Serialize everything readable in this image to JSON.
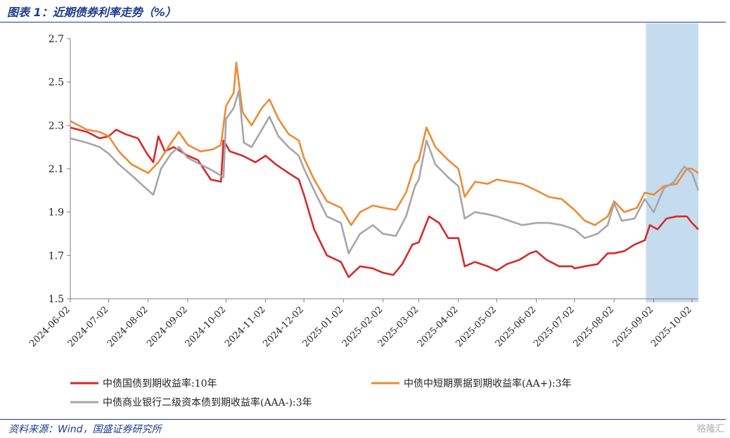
{
  "title": "图表 1：近期债券利率走势（%）",
  "source": "资料来源：Wind，国盛证券研究所",
  "watermark": "格隆汇",
  "chart_data": {
    "type": "line",
    "title": "",
    "xlabel": "",
    "ylabel": "",
    "ylim": [
      1.5,
      2.7
    ],
    "yticks": [
      "2.7",
      "2.5",
      "2.3",
      "2.1",
      "1.9",
      "1.7",
      "1.5"
    ],
    "xticks": [
      "2024-06-02",
      "2024-07-02",
      "2024-08-02",
      "2024-09-02",
      "2024-10-02",
      "2024-11-02",
      "2024-12-02",
      "2025-01-02",
      "2025-02-02",
      "2025-03-02",
      "2025-04-02",
      "2025-05-02",
      "2025-06-02",
      "2025-07-02",
      "2025-08-02",
      "2025-09-02",
      "2025-10-02"
    ],
    "grid": false,
    "legend_position": "bottom",
    "highlight": {
      "from": "2025-08-27",
      "to": "2025-10-02",
      "color": "#c5dcef"
    },
    "series": [
      {
        "name": "中债国债到期收益率:10年",
        "color": "#d62a2a",
        "points": [
          [
            "2024-06-02",
            2.29
          ],
          [
            "2024-06-15",
            2.27
          ],
          [
            "2024-06-25",
            2.24
          ],
          [
            "2024-07-02",
            2.25
          ],
          [
            "2024-07-08",
            2.28
          ],
          [
            "2024-07-15",
            2.26
          ],
          [
            "2024-07-25",
            2.24
          ],
          [
            "2024-08-01",
            2.17
          ],
          [
            "2024-08-06",
            2.13
          ],
          [
            "2024-08-10",
            2.25
          ],
          [
            "2024-08-15",
            2.18
          ],
          [
            "2024-08-22",
            2.2
          ],
          [
            "2024-09-02",
            2.16
          ],
          [
            "2024-09-10",
            2.14
          ],
          [
            "2024-09-20",
            2.05
          ],
          [
            "2024-09-28",
            2.04
          ],
          [
            "2024-09-30",
            2.23
          ],
          [
            "2024-10-05",
            2.18
          ],
          [
            "2024-10-15",
            2.16
          ],
          [
            "2024-10-25",
            2.13
          ],
          [
            "2024-11-02",
            2.16
          ],
          [
            "2024-11-10",
            2.12
          ],
          [
            "2024-11-20",
            2.08
          ],
          [
            "2024-11-28",
            2.05
          ],
          [
            "2024-12-02",
            1.98
          ],
          [
            "2024-12-10",
            1.82
          ],
          [
            "2024-12-20",
            1.7
          ],
          [
            "2024-12-31",
            1.67
          ],
          [
            "2025-01-06",
            1.6
          ],
          [
            "2025-01-15",
            1.65
          ],
          [
            "2025-01-25",
            1.64
          ],
          [
            "2025-02-02",
            1.62
          ],
          [
            "2025-02-10",
            1.61
          ],
          [
            "2025-02-17",
            1.66
          ],
          [
            "2025-02-25",
            1.75
          ],
          [
            "2025-03-02",
            1.76
          ],
          [
            "2025-03-10",
            1.88
          ],
          [
            "2025-03-18",
            1.85
          ],
          [
            "2025-03-25",
            1.78
          ],
          [
            "2025-04-02",
            1.78
          ],
          [
            "2025-04-07",
            1.65
          ],
          [
            "2025-04-15",
            1.67
          ],
          [
            "2025-04-25",
            1.65
          ],
          [
            "2025-05-02",
            1.63
          ],
          [
            "2025-05-10",
            1.66
          ],
          [
            "2025-05-20",
            1.68
          ],
          [
            "2025-05-28",
            1.71
          ],
          [
            "2025-06-02",
            1.72
          ],
          [
            "2025-06-10",
            1.68
          ],
          [
            "2025-06-20",
            1.65
          ],
          [
            "2025-06-30",
            1.65
          ],
          [
            "2025-07-02",
            1.64
          ],
          [
            "2025-07-10",
            1.65
          ],
          [
            "2025-07-20",
            1.66
          ],
          [
            "2025-07-28",
            1.71
          ],
          [
            "2025-08-02",
            1.71
          ],
          [
            "2025-08-10",
            1.72
          ],
          [
            "2025-08-18",
            1.75
          ],
          [
            "2025-08-26",
            1.77
          ],
          [
            "2025-08-30",
            1.84
          ],
          [
            "2025-09-05",
            1.82
          ],
          [
            "2025-09-12",
            1.87
          ],
          [
            "2025-09-20",
            1.88
          ],
          [
            "2025-09-28",
            1.88
          ],
          [
            "2025-10-02",
            1.85
          ],
          [
            "2025-10-07",
            1.82
          ]
        ]
      },
      {
        "name": "中债中短期票据到期收益率(AA+):3年",
        "color": "#ed8b36",
        "points": [
          [
            "2024-06-02",
            2.32
          ],
          [
            "2024-06-15",
            2.28
          ],
          [
            "2024-06-25",
            2.27
          ],
          [
            "2024-07-02",
            2.25
          ],
          [
            "2024-07-10",
            2.18
          ],
          [
            "2024-07-20",
            2.12
          ],
          [
            "2024-08-02",
            2.08
          ],
          [
            "2024-08-10",
            2.13
          ],
          [
            "2024-08-20",
            2.22
          ],
          [
            "2024-08-26",
            2.27
          ],
          [
            "2024-09-02",
            2.21
          ],
          [
            "2024-09-12",
            2.18
          ],
          [
            "2024-09-22",
            2.19
          ],
          [
            "2024-09-28",
            2.21
          ],
          [
            "2024-10-02",
            2.39
          ],
          [
            "2024-10-08",
            2.45
          ],
          [
            "2024-10-10",
            2.59
          ],
          [
            "2024-10-15",
            2.36
          ],
          [
            "2024-10-22",
            2.3
          ],
          [
            "2024-10-30",
            2.38
          ],
          [
            "2024-11-05",
            2.42
          ],
          [
            "2024-11-12",
            2.33
          ],
          [
            "2024-11-20",
            2.26
          ],
          [
            "2024-11-28",
            2.23
          ],
          [
            "2024-12-02",
            2.15
          ],
          [
            "2024-12-10",
            2.05
          ],
          [
            "2024-12-20",
            1.95
          ],
          [
            "2024-12-31",
            1.92
          ],
          [
            "2025-01-08",
            1.84
          ],
          [
            "2025-01-15",
            1.9
          ],
          [
            "2025-01-25",
            1.93
          ],
          [
            "2025-02-02",
            1.92
          ],
          [
            "2025-02-12",
            1.91
          ],
          [
            "2025-02-20",
            1.99
          ],
          [
            "2025-02-27",
            2.12
          ],
          [
            "2025-03-02",
            2.14
          ],
          [
            "2025-03-08",
            2.29
          ],
          [
            "2025-03-15",
            2.2
          ],
          [
            "2025-03-25",
            2.14
          ],
          [
            "2025-04-02",
            2.1
          ],
          [
            "2025-04-07",
            1.97
          ],
          [
            "2025-04-15",
            2.04
          ],
          [
            "2025-04-25",
            2.03
          ],
          [
            "2025-05-02",
            2.05
          ],
          [
            "2025-05-12",
            2.04
          ],
          [
            "2025-05-22",
            2.03
          ],
          [
            "2025-06-02",
            2.0
          ],
          [
            "2025-06-12",
            1.97
          ],
          [
            "2025-06-22",
            1.96
          ],
          [
            "2025-07-02",
            1.91
          ],
          [
            "2025-07-10",
            1.86
          ],
          [
            "2025-07-18",
            1.84
          ],
          [
            "2025-07-28",
            1.88
          ],
          [
            "2025-08-02",
            1.95
          ],
          [
            "2025-08-10",
            1.9
          ],
          [
            "2025-08-20",
            1.92
          ],
          [
            "2025-08-26",
            1.99
          ],
          [
            "2025-09-02",
            1.98
          ],
          [
            "2025-09-10",
            2.02
          ],
          [
            "2025-09-20",
            2.03
          ],
          [
            "2025-09-28",
            2.1
          ],
          [
            "2025-10-02",
            2.1
          ],
          [
            "2025-10-07",
            2.08
          ]
        ]
      },
      {
        "name": "中债商业银行二级资本债到期收益率(AAA-):3年",
        "color": "#a6a6a6",
        "points": [
          [
            "2024-06-02",
            2.24
          ],
          [
            "2024-06-15",
            2.22
          ],
          [
            "2024-06-25",
            2.2
          ],
          [
            "2024-07-02",
            2.17
          ],
          [
            "2024-07-10",
            2.12
          ],
          [
            "2024-07-20",
            2.07
          ],
          [
            "2024-08-02",
            2.0
          ],
          [
            "2024-08-06",
            1.98
          ],
          [
            "2024-08-12",
            2.1
          ],
          [
            "2024-08-20",
            2.17
          ],
          [
            "2024-08-26",
            2.2
          ],
          [
            "2024-09-02",
            2.15
          ],
          [
            "2024-09-12",
            2.12
          ],
          [
            "2024-09-22",
            2.09
          ],
          [
            "2024-09-30",
            2.06
          ],
          [
            "2024-10-02",
            2.33
          ],
          [
            "2024-10-08",
            2.38
          ],
          [
            "2024-10-12",
            2.46
          ],
          [
            "2024-10-16",
            2.22
          ],
          [
            "2024-10-22",
            2.2
          ],
          [
            "2024-10-30",
            2.28
          ],
          [
            "2024-11-05",
            2.34
          ],
          [
            "2024-11-12",
            2.25
          ],
          [
            "2024-11-20",
            2.2
          ],
          [
            "2024-11-28",
            2.16
          ],
          [
            "2024-12-02",
            2.1
          ],
          [
            "2024-12-10",
            2.0
          ],
          [
            "2024-12-20",
            1.88
          ],
          [
            "2024-12-31",
            1.85
          ],
          [
            "2025-01-06",
            1.71
          ],
          [
            "2025-01-15",
            1.8
          ],
          [
            "2025-01-25",
            1.84
          ],
          [
            "2025-02-02",
            1.8
          ],
          [
            "2025-02-12",
            1.79
          ],
          [
            "2025-02-20",
            1.88
          ],
          [
            "2025-02-27",
            2.02
          ],
          [
            "2025-03-02",
            2.05
          ],
          [
            "2025-03-08",
            2.23
          ],
          [
            "2025-03-15",
            2.12
          ],
          [
            "2025-03-25",
            2.06
          ],
          [
            "2025-04-02",
            2.02
          ],
          [
            "2025-04-07",
            1.87
          ],
          [
            "2025-04-15",
            1.9
          ],
          [
            "2025-04-25",
            1.89
          ],
          [
            "2025-05-02",
            1.88
          ],
          [
            "2025-05-12",
            1.86
          ],
          [
            "2025-05-22",
            1.84
          ],
          [
            "2025-06-02",
            1.85
          ],
          [
            "2025-06-12",
            1.85
          ],
          [
            "2025-06-22",
            1.84
          ],
          [
            "2025-07-02",
            1.82
          ],
          [
            "2025-07-10",
            1.78
          ],
          [
            "2025-07-20",
            1.8
          ],
          [
            "2025-07-28",
            1.84
          ],
          [
            "2025-08-02",
            1.94
          ],
          [
            "2025-08-08",
            1.86
          ],
          [
            "2025-08-18",
            1.87
          ],
          [
            "2025-08-26",
            1.96
          ],
          [
            "2025-09-02",
            1.9
          ],
          [
            "2025-09-10",
            2.01
          ],
          [
            "2025-09-18",
            2.04
          ],
          [
            "2025-09-26",
            2.11
          ],
          [
            "2025-10-02",
            2.08
          ],
          [
            "2025-10-07",
            2.0
          ]
        ]
      }
    ]
  }
}
